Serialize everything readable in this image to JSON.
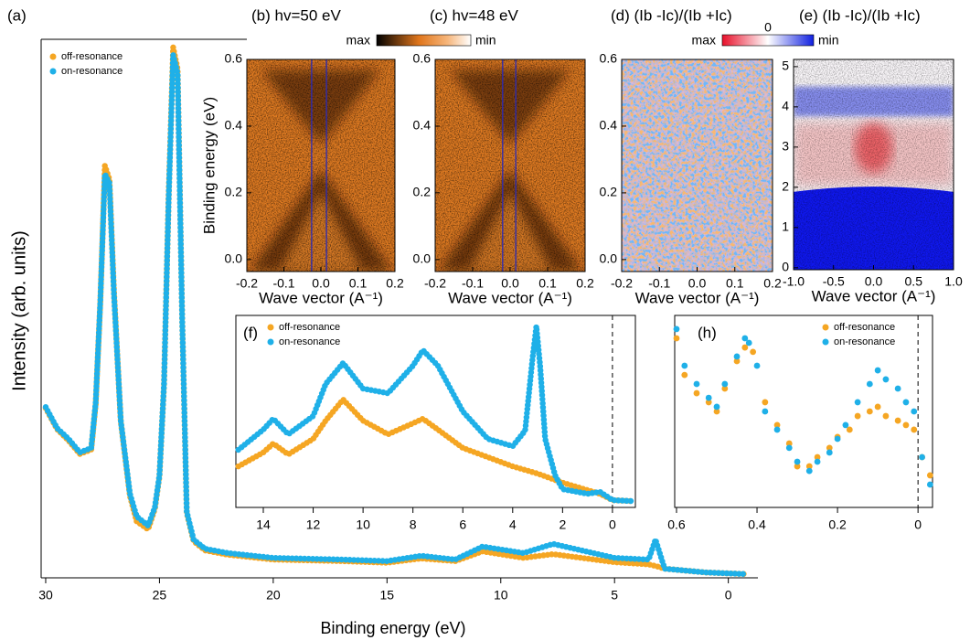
{
  "chart_data": [
    {
      "type": "scatter",
      "label": "(a)",
      "xlabel": "Binding energy (eV)",
      "ylabel": "Intensity (arb. units)",
      "xlim": [
        30.2,
        -1.3
      ],
      "ylim": [
        0,
        100
      ],
      "xticks": [
        30,
        25,
        20,
        15,
        10,
        5,
        0
      ],
      "legend": "upper left",
      "series": [
        {
          "name": "off-resonance",
          "color": "#f5a623",
          "x": [
            30,
            29.5,
            29,
            28.5,
            28,
            27.8,
            27.6,
            27.4,
            27.2,
            27,
            26.7,
            26.3,
            26,
            25.5,
            25.2,
            25,
            24.8,
            24.6,
            24.4,
            24.2,
            24,
            23.8,
            23.5,
            23,
            22,
            20,
            17,
            15,
            13.5,
            12,
            10.8,
            9,
            7.7,
            5,
            3.5,
            3.2,
            2.8,
            1,
            -0.8
          ],
          "values": [
            31.5,
            27.6,
            25.5,
            23.0,
            23.8,
            32.2,
            51.0,
            76.5,
            74.0,
            53.5,
            29.0,
            15.2,
            10.5,
            9.0,
            12.8,
            18.8,
            35.8,
            70.5,
            98.5,
            94.5,
            48.0,
            12.0,
            6.8,
            5.1,
            4.3,
            3.4,
            3.1,
            2.8,
            3.6,
            3.1,
            4.9,
            3.7,
            4.4,
            2.9,
            2.5,
            2.2,
            1.7,
            1.0,
            0.7
          ]
        },
        {
          "name": "on-resonance",
          "color": "#1fb0e8",
          "x": [
            30,
            29.5,
            29,
            28.5,
            28,
            27.8,
            27.6,
            27.4,
            27.2,
            27,
            26.7,
            26.3,
            26,
            25.5,
            25.2,
            25,
            24.8,
            24.6,
            24.4,
            24.2,
            24,
            23.8,
            23.5,
            23,
            22,
            20,
            17,
            15,
            13.5,
            12,
            10.8,
            9,
            7.7,
            5,
            3.5,
            3.2,
            2.8,
            1,
            -0.8
          ],
          "values": [
            31.7,
            27.8,
            25.8,
            23.3,
            24.1,
            32.6,
            51.3,
            75.0,
            73.3,
            52.9,
            29.2,
            15.6,
            11.4,
            9.7,
            13.1,
            19.0,
            36.0,
            69.9,
            97.1,
            93.7,
            47.9,
            12.2,
            7.1,
            5.4,
            4.6,
            3.7,
            3.4,
            3.1,
            4.1,
            3.4,
            5.8,
            4.6,
            6.3,
            3.7,
            3.4,
            7.1,
            1.7,
            1.0,
            0.7
          ]
        }
      ]
    },
    {
      "type": "image",
      "title": "(b) hv=50 eV",
      "ylabel": "Binding energy (eV)",
      "xlabel": "Wave vector (A⁻¹)",
      "xlim": [
        -0.2,
        0.2
      ],
      "ylim": [
        -0.036,
        0.6
      ],
      "xticks": [
        -0.2,
        -0.1,
        {
          "value": 0,
          "label": "0.0"
        },
        0.1,
        0.2
      ],
      "yticks": [
        {
          "value": 0,
          "label": "0.0"
        },
        0.2,
        0.4,
        0.6
      ],
      "markers": [
        -0.025,
        0.015
      ],
      "colorbar": [
        "max",
        "min"
      ]
    },
    {
      "type": "image",
      "title": "(c) hv=48 eV",
      "xlabel": "Wave vector (A⁻¹)",
      "xlim": [
        -0.2,
        0.2
      ],
      "ylim": [
        -0.036,
        0.6
      ],
      "xticks": [
        -0.2,
        -0.1,
        {
          "value": 0,
          "label": "0.0"
        },
        0.1,
        0.2
      ],
      "yticks": [
        {
          "value": 0,
          "label": "0.0"
        },
        0.2,
        0.4,
        0.6
      ],
      "markers": [
        -0.02,
        0.015
      ]
    },
    {
      "type": "image",
      "title": "(d) (Ib -Ic)/(Ib +Ic)",
      "xlabel": "Wave vector (A⁻¹)",
      "xlim": [
        -0.2,
        0.2
      ],
      "ylim": [
        -0.036,
        0.6
      ],
      "xticks": [
        -0.2,
        -0.1,
        {
          "value": 0,
          "label": "0.0"
        },
        0.1,
        0.2
      ],
      "yticks": [
        {
          "value": 0,
          "label": "0.0"
        },
        0.2,
        0.4,
        0.6
      ],
      "colorbar": [
        "max",
        "0",
        "min"
      ]
    },
    {
      "type": "image",
      "title": "(e) (Ib -Ic)/(Ib +Ic)",
      "xlabel": "Wave vector (A⁻¹)",
      "xlim": [
        -1,
        1
      ],
      "ylim": [
        -0.05,
        5.18
      ],
      "xticks": [
        {
          "value": -1,
          "label": "-1.0"
        },
        -0.5,
        {
          "value": 0,
          "label": "0.0"
        },
        0.5,
        {
          "value": 1,
          "label": "1.0"
        }
      ],
      "yticks": [
        0,
        1,
        2,
        3,
        4,
        5
      ]
    },
    {
      "type": "scatter",
      "label": "(f)",
      "xlim": [
        15.1,
        -0.92
      ],
      "ylim": [
        0,
        100
      ],
      "xticks": [
        14,
        12,
        10,
        8,
        6,
        4,
        2,
        0
      ],
      "vline": 0,
      "legend": "upper left",
      "series": [
        {
          "name": "off-resonance",
          "color": "#f5a623",
          "x": [
            15,
            14,
            13.6,
            13,
            12,
            11.5,
            10.8,
            10,
            9,
            8,
            7.6,
            7,
            6,
            5,
            4,
            3,
            2,
            1,
            0.5,
            0,
            -0.8
          ],
          "values": [
            21.4,
            28.6,
            33.3,
            27.6,
            35.7,
            45.2,
            56.2,
            45.2,
            38.1,
            43.8,
            46.2,
            40.5,
            31.0,
            26.2,
            21.4,
            17.6,
            12.9,
            9.0,
            7.1,
            3.8,
            3.3
          ]
        },
        {
          "name": "on-resonance",
          "color": "#1fb0e8",
          "x": [
            15,
            14,
            13.6,
            13,
            12,
            11.5,
            10.8,
            10,
            9,
            8,
            7.6,
            7,
            6,
            5,
            4,
            3.5,
            3.2,
            3.05,
            2.9,
            2.7,
            2.3,
            2,
            1,
            0.5,
            0,
            -0.8
          ],
          "values": [
            30.0,
            40.5,
            46.2,
            38.1,
            47.6,
            64.3,
            75.2,
            61.9,
            59.5,
            73.8,
            81.9,
            73.8,
            50.0,
            35.7,
            31.9,
            40.0,
            78.1,
            94.3,
            73.8,
            35.7,
            16.7,
            9.5,
            7.1,
            8.1,
            3.8,
            3.3
          ]
        }
      ]
    },
    {
      "type": "scatter",
      "label": "(h)",
      "xlim": [
        0.6045,
        -0.036
      ],
      "ylim": [
        0,
        100
      ],
      "xticks": [
        0.6,
        0.4,
        0.2,
        0
      ],
      "vline": 0,
      "legend": "upper right",
      "series": [
        {
          "name": "off-resonance",
          "color": "#f5a623",
          "x": [
            0.6,
            0.58,
            0.55,
            0.52,
            0.5,
            0.48,
            0.45,
            0.43,
            0.41,
            0.38,
            0.35,
            0.32,
            0.3,
            0.27,
            0.25,
            0.22,
            0.2,
            0.17,
            0.15,
            0.12,
            0.1,
            0.08,
            0.05,
            0.03,
            0.01,
            -0.01,
            -0.03
          ],
          "values": [
            88.1,
            69.0,
            59.5,
            54.8,
            50.0,
            61.9,
            76.2,
            83.3,
            81.0,
            54.8,
            42.9,
            33.3,
            21.4,
            21.4,
            26.2,
            31.0,
            36.7,
            40.5,
            47.6,
            50.0,
            52.4,
            47.6,
            45.2,
            42.9,
            40.5,
            26.2,
            16.7
          ]
        },
        {
          "name": "on-resonance",
          "color": "#1fb0e8",
          "x": [
            0.6,
            0.58,
            0.55,
            0.52,
            0.5,
            0.48,
            0.45,
            0.43,
            0.42,
            0.4,
            0.38,
            0.35,
            0.32,
            0.3,
            0.27,
            0.25,
            0.22,
            0.2,
            0.18,
            0.15,
            0.12,
            0.1,
            0.08,
            0.05,
            0.03,
            0.01,
            -0.01,
            -0.03
          ],
          "values": [
            92.9,
            73.8,
            64.3,
            57.1,
            52.4,
            64.3,
            78.6,
            88.1,
            85.7,
            73.8,
            50.0,
            40.5,
            31.0,
            23.8,
            19.0,
            23.8,
            28.6,
            35.7,
            42.9,
            54.8,
            64.3,
            71.4,
            66.7,
            61.9,
            54.8,
            50.0,
            26.2,
            11.9
          ]
        }
      ]
    }
  ]
}
